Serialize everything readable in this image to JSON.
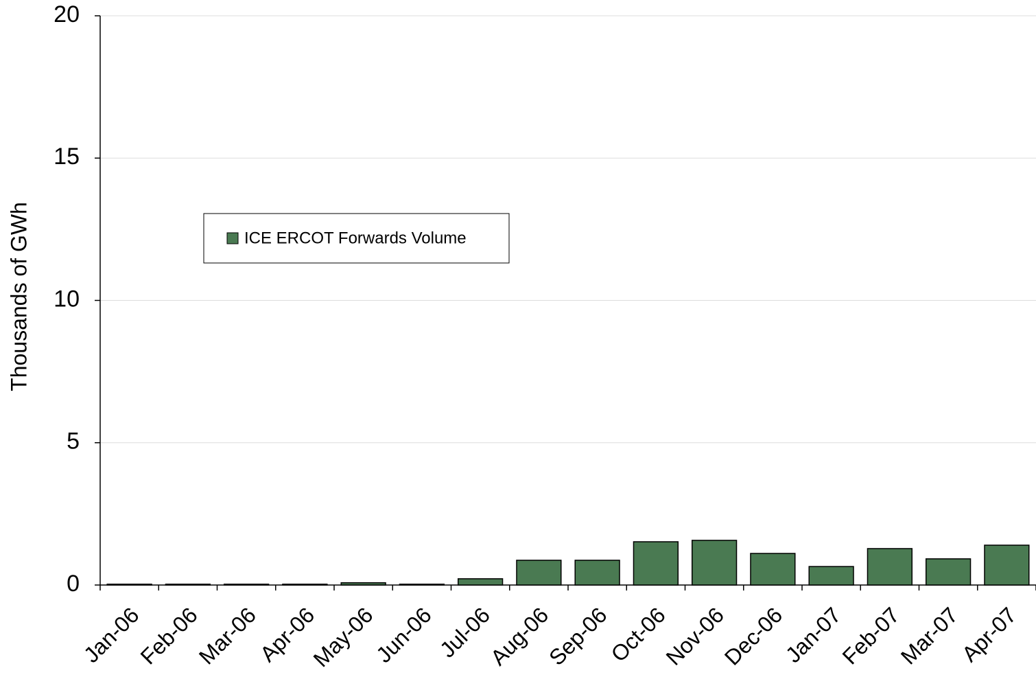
{
  "chart_data": {
    "type": "bar",
    "y_label": "Thousands of GWh",
    "categories": [
      "Jan-06",
      "Feb-06",
      "Mar-06",
      "Apr-06",
      "May-06",
      "Jun-06",
      "Jul-06",
      "Aug-06",
      "Sep-06",
      "Oct-06",
      "Nov-06",
      "Dec-06",
      "Jan-07",
      "Feb-07",
      "Mar-07",
      "Apr-07"
    ],
    "series": [
      {
        "name": "ICE ERCOT Forwards Volume",
        "color": "#4a7a52",
        "values": [
          0.03,
          0.03,
          0.03,
          0.03,
          0.08,
          0.03,
          0.22,
          0.87,
          0.87,
          1.52,
          1.57,
          1.11,
          0.65,
          1.28,
          0.92,
          1.4
        ]
      }
    ],
    "ylim": [
      0,
      20
    ],
    "yticks": [
      0,
      5,
      10,
      15,
      20
    ],
    "grid": true,
    "legend": "upper-left"
  }
}
